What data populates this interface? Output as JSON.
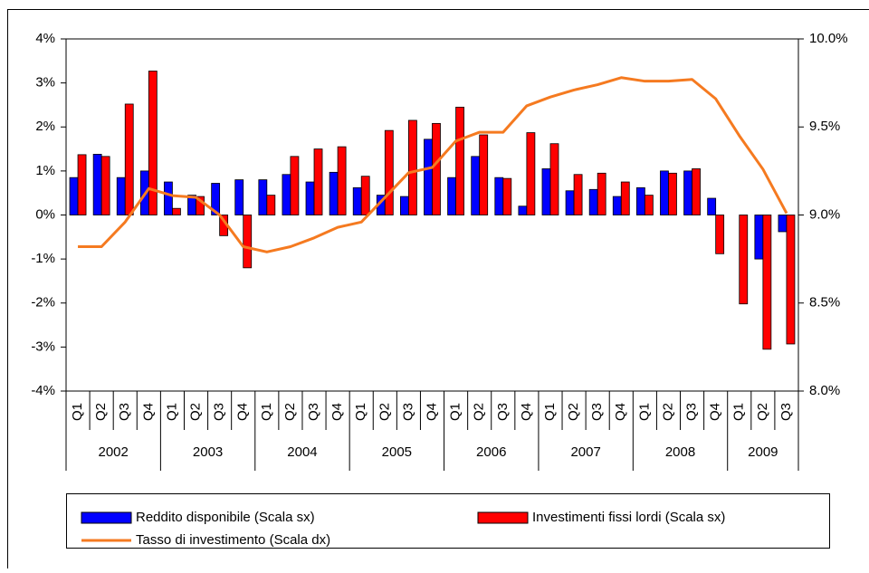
{
  "chart_data": {
    "type": "bar",
    "categories": [
      "Q1",
      "Q2",
      "Q3",
      "Q4",
      "Q1",
      "Q2",
      "Q3",
      "Q4",
      "Q1",
      "Q2",
      "Q3",
      "Q4",
      "Q1",
      "Q2",
      "Q3",
      "Q4",
      "Q1",
      "Q2",
      "Q3",
      "Q4",
      "Q1",
      "Q2",
      "Q3",
      "Q4",
      "Q1",
      "Q2",
      "Q3",
      "Q4",
      "Q1",
      "Q2",
      "Q3"
    ],
    "category_groups": [
      "2002",
      "2003",
      "2004",
      "2005",
      "2006",
      "2007",
      "2008",
      "2009"
    ],
    "series": [
      {
        "name": "Reddito disponibile (Scala sx)",
        "type": "bar",
        "color": "#0000ff",
        "values": [
          0.85,
          1.38,
          0.85,
          1.0,
          0.75,
          0.45,
          0.72,
          0.8,
          0.8,
          0.92,
          0.75,
          0.97,
          0.62,
          0.45,
          0.42,
          1.72,
          0.85,
          1.33,
          0.85,
          0.2,
          1.05,
          0.55,
          0.58,
          0.42,
          0.62,
          1.0,
          1.0,
          0.38,
          0,
          -1.0,
          -0.38
        ]
      },
      {
        "name": "Investimenti fissi lordi (Scala sx)",
        "type": "bar",
        "color": "#ff0000",
        "values": [
          1.37,
          1.33,
          2.52,
          3.27,
          0.15,
          0.42,
          -0.47,
          -1.2,
          0.45,
          1.33,
          1.5,
          1.55,
          0.88,
          1.92,
          2.15,
          2.08,
          2.45,
          1.82,
          0.83,
          1.87,
          1.62,
          0.92,
          0.95,
          0.75,
          0.45,
          0.95,
          1.05,
          -0.88,
          -2.02,
          -3.05,
          -2.93
        ]
      },
      {
        "name": "Tasso di investimento (Scala dx)",
        "type": "line",
        "axis": "y2",
        "color": "#f57a20",
        "values": [
          8.82,
          8.82,
          8.96,
          9.15,
          9.11,
          9.1,
          9.0,
          8.82,
          8.79,
          8.82,
          8.87,
          8.93,
          8.96,
          9.1,
          9.24,
          9.27,
          9.42,
          9.47,
          9.47,
          9.62,
          9.67,
          9.71,
          9.74,
          9.78,
          9.76,
          9.76,
          9.77,
          9.66,
          9.45,
          9.26,
          9.01
        ]
      }
    ],
    "ylim": [
      -4,
      4
    ],
    "yticks": [
      {
        "value": -4,
        "label": "-4%"
      },
      {
        "value": -3,
        "label": "-3%"
      },
      {
        "value": -2,
        "label": "-2%"
      },
      {
        "value": -1,
        "label": "-1%"
      },
      {
        "value": 0,
        "label": "0%"
      },
      {
        "value": 1,
        "label": "1%"
      },
      {
        "value": 2,
        "label": "2%"
      },
      {
        "value": 3,
        "label": "3%"
      },
      {
        "value": 4,
        "label": "4%"
      }
    ],
    "y2lim": [
      8,
      10
    ],
    "y2ticks": [
      {
        "value": 8,
        "label": "8.0%"
      },
      {
        "value": 8.5,
        "label": "8.5%"
      },
      {
        "value": 9,
        "label": "9.0%"
      },
      {
        "value": 9.5,
        "label": "9.5%"
      },
      {
        "value": 10,
        "label": "10.0%"
      }
    ],
    "grid": false,
    "legend": "bottom"
  }
}
